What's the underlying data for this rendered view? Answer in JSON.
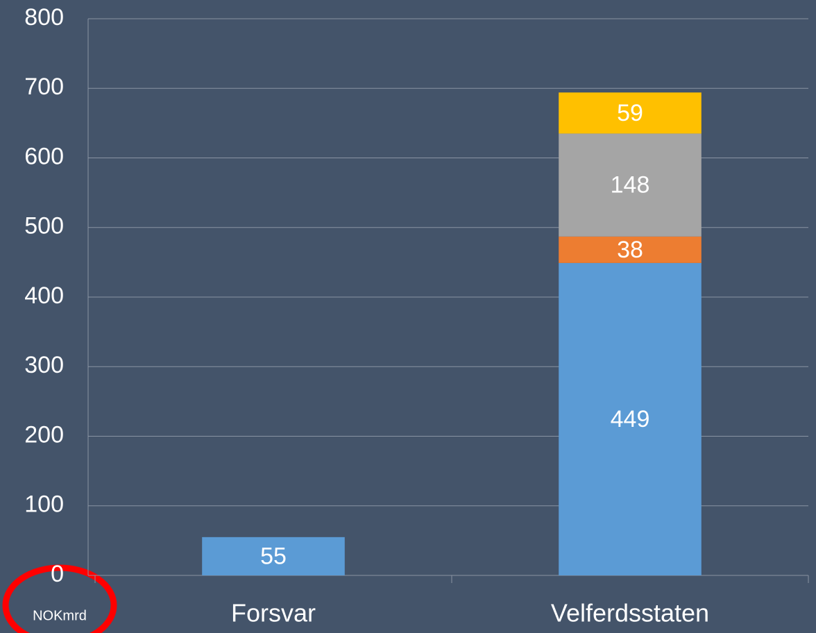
{
  "chart_data": {
    "type": "stacked_bar",
    "categories": [
      "Forsvar",
      "Velferdsstaten"
    ],
    "series": [
      {
        "color": "#5b9bd5",
        "values": [
          55,
          449
        ]
      },
      {
        "color": "#ed7d31",
        "values": [
          null,
          38
        ]
      },
      {
        "color": "#a5a5a5",
        "values": [
          null,
          148
        ]
      },
      {
        "color": "#ffc000",
        "values": [
          null,
          59
        ]
      }
    ],
    "ylim": [
      0,
      800
    ],
    "yticks": [
      0,
      100,
      200,
      300,
      400,
      500,
      600,
      700,
      800
    ],
    "grid": true,
    "annotation": "NOKmrd"
  }
}
